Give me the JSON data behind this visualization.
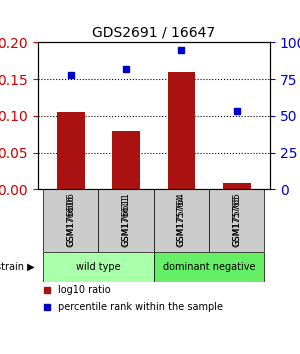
{
  "title": "GDS2691 / 16647",
  "samples": [
    "GSM176606",
    "GSM176611",
    "GSM175764",
    "GSM175765"
  ],
  "log10_ratio": [
    0.105,
    0.079,
    0.16,
    0.009
  ],
  "percentile_rank": [
    78,
    82,
    95,
    53
  ],
  "bar_color": "#aa1111",
  "dot_color": "#0000cc",
  "left_ylim": [
    0,
    0.2
  ],
  "right_ylim": [
    0,
    100
  ],
  "left_yticks": [
    0,
    0.05,
    0.1,
    0.15,
    0.2
  ],
  "right_yticks": [
    0,
    25,
    50,
    75,
    100
  ],
  "right_yticklabels": [
    "0",
    "25",
    "50",
    "75",
    "100%"
  ],
  "left_ytick_color": "#cc0000",
  "right_ytick_color": "#0000cc",
  "dotted_lines": [
    0.05,
    0.1,
    0.15
  ],
  "groups": [
    {
      "label": "wild type",
      "indices": [
        0,
        1
      ],
      "color": "#aaffaa"
    },
    {
      "label": "dominant negative",
      "indices": [
        2,
        3
      ],
      "color": "#66ee66"
    }
  ],
  "strain_label": "strain",
  "legend_items": [
    {
      "color": "#aa1111",
      "label": "log10 ratio"
    },
    {
      "color": "#0000cc",
      "label": "percentile rank within the sample"
    }
  ],
  "bar_width": 0.5,
  "background_color": "#ffffff"
}
